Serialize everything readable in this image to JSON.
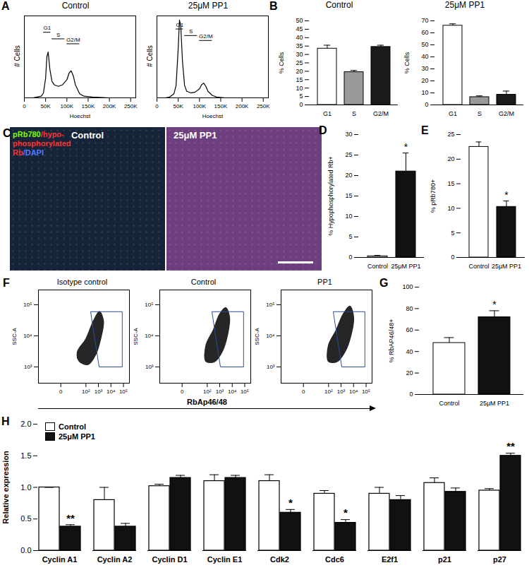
{
  "chart_data": [
    {
      "panel": "A",
      "type": "line",
      "title": "Control",
      "x_label": "Hoechst",
      "y_label": "# Cells",
      "color": "#000000",
      "x": [
        0,
        20000,
        30000,
        40000,
        45000,
        50000,
        53000,
        56000,
        60000,
        65000,
        70000,
        80000,
        90000,
        100000,
        105000,
        110000,
        115000,
        120000,
        130000,
        140000,
        160000,
        200000,
        250000
      ],
      "values": [
        0,
        0,
        0.01,
        0.02,
        0.06,
        0.24,
        0.5,
        0.56,
        0.35,
        0.2,
        0.16,
        0.14,
        0.16,
        0.22,
        0.3,
        0.33,
        0.27,
        0.16,
        0.05,
        0.02,
        0.01,
        0,
        0
      ],
      "xlim": [
        0,
        262000
      ],
      "xticks": [
        0,
        {
          "value": 50000,
          "label": "50K"
        },
        {
          "value": 100000,
          "label": "100K"
        },
        {
          "value": 150000,
          "label": "150K"
        },
        {
          "value": 200000,
          "label": "200K"
        },
        {
          "value": 250000,
          "label": "250K"
        }
      ],
      "ylim": [
        0,
        1
      ],
      "tick_labels": "x",
      "gates": [
        {
          "label": "G1",
          "x": [
            45000,
            62000
          ],
          "y": 0.8
        },
        {
          "label": "S",
          "x": [
            65000,
            95000
          ],
          "y": 0.72
        },
        {
          "label": "G2/M",
          "x": [
            100000,
            130000
          ],
          "y": 0.66
        }
      ]
    },
    {
      "type": "line",
      "title": "25μM PP1",
      "x_label": "Hoechst",
      "y_label": "# Cells",
      "color": "#000000",
      "x": [
        0,
        20000,
        30000,
        40000,
        45000,
        50000,
        53000,
        56000,
        60000,
        65000,
        70000,
        80000,
        90000,
        100000,
        105000,
        110000,
        115000,
        120000,
        130000,
        140000,
        160000,
        200000,
        250000
      ],
      "values": [
        0,
        0,
        0.01,
        0.05,
        0.15,
        0.6,
        0.95,
        0.88,
        0.45,
        0.15,
        0.08,
        0.06,
        0.07,
        0.11,
        0.16,
        0.18,
        0.14,
        0.08,
        0.03,
        0.01,
        0,
        0,
        0
      ],
      "xlim": [
        0,
        262000
      ],
      "xticks": [
        0,
        {
          "value": 50000,
          "label": "50K"
        },
        {
          "value": 100000,
          "label": "100K"
        },
        {
          "value": 150000,
          "label": "150K"
        },
        {
          "value": 200000,
          "label": "200K"
        },
        {
          "value": 250000,
          "label": "250K"
        }
      ],
      "ylim": [
        0,
        1
      ],
      "tick_labels": "x",
      "gates": [
        {
          "label": "G1",
          "x": [
            45000,
            62000
          ],
          "y": 0.84
        },
        {
          "label": "S",
          "x": [
            65000,
            95000
          ],
          "y": 0.76
        },
        {
          "label": "G2/M",
          "x": [
            100000,
            130000
          ],
          "y": 0.7
        }
      ]
    },
    {
      "panel": "B",
      "type": "bar",
      "title": "Control",
      "y_label": "% Cells",
      "categories": [
        "G1",
        "S",
        "G2/M"
      ],
      "values": [
        33.5,
        19.5,
        34.5
      ],
      "errors": [
        2,
        1,
        1
      ],
      "colors": [
        "#ffffff",
        "#999999",
        "#1a1a1a"
      ],
      "ylim": [
        0,
        50
      ],
      "yticks": [
        0,
        5,
        10,
        15,
        20,
        25,
        30,
        35,
        40,
        45,
        50
      ]
    },
    {
      "type": "bar",
      "title": "25μM PP1",
      "y_label": "% Cells",
      "categories": [
        "G1",
        "S",
        "G2/M"
      ],
      "values": [
        66,
        6.5,
        8.5
      ],
      "errors": [
        1.5,
        1,
        3
      ],
      "colors": [
        "#ffffff",
        "#999999",
        "#1a1a1a"
      ],
      "ylim": [
        0,
        70
      ],
      "yticks": [
        0,
        10,
        20,
        30,
        40,
        50,
        60,
        70
      ]
    },
    {
      "panel": "C",
      "type": "image",
      "stain_label": [
        {
          "text": "pRb780",
          "color": "#7CFC00"
        },
        {
          "text": "/hypo-phosphorylated Rb",
          "color": "#ff3030"
        },
        {
          "text": "/DAPI",
          "color": "#5a78ff"
        }
      ],
      "panels": [
        {
          "title": "Control",
          "color": "#16243a"
        },
        {
          "title": "25μM PP1",
          "color": "#6e3f7e"
        }
      ]
    },
    {
      "panel": "D",
      "type": "bar",
      "y_label": "% Hypophosphorylated Rb+",
      "categories": [
        "Control",
        "25μM PP1"
      ],
      "values": [
        0.3,
        21
      ],
      "errors": [
        0.2,
        4.5
      ],
      "colors": [
        "#ffffff",
        "#111111"
      ],
      "ylim": [
        0,
        30
      ],
      "yticks": [
        0,
        5,
        10,
        15,
        20,
        25,
        30
      ],
      "annotations": [
        {
          "category": "25μM PP1",
          "text": "*"
        }
      ]
    },
    {
      "panel": "E",
      "type": "bar",
      "y_label": "% pRb780+",
      "categories": [
        "Control",
        "25μM PP1"
      ],
      "values": [
        22.5,
        10.3
      ],
      "errors": [
        1,
        1.2
      ],
      "colors": [
        "#ffffff",
        "#111111"
      ],
      "ylim": [
        0,
        25
      ],
      "yticks": [
        0,
        5,
        10,
        15,
        20,
        25
      ],
      "annotations": [
        {
          "category": "25μM PP1",
          "text": "*"
        }
      ]
    },
    {
      "panel": "F",
      "type": "scatter",
      "title": "Isotype control",
      "y_label": "SSC-A",
      "log": true,
      "color": "#262626",
      "cloud": [
        [
          30,
          1500
        ],
        [
          150,
          1200
        ],
        [
          600,
          2500
        ],
        [
          1500,
          8000
        ],
        [
          2500,
          30000
        ],
        [
          1200,
          60000
        ],
        [
          400,
          30000
        ],
        [
          100,
          8000
        ],
        [
          20,
          3000
        ]
      ],
      "gate": [
        [
          250,
          60000
        ],
        [
          80000,
          60000
        ],
        [
          80000,
          1000
        ],
        [
          1200,
          1000
        ]
      ],
      "xlim": [
        -60,
        300000
      ],
      "xticks": [
        0,
        {
          "value": 100,
          "label": "10²"
        },
        {
          "value": 1000,
          "label": "10³"
        },
        {
          "value": 10000,
          "label": "10⁴"
        },
        {
          "value": 100000,
          "label": "10⁵"
        }
      ],
      "ylim": [
        300,
        300000
      ],
      "yticks": [
        {
          "value": 1000,
          "label": "10³"
        },
        {
          "value": 10000,
          "label": "10⁴"
        },
        {
          "value": 100000,
          "label": "10⁵"
        }
      ]
    },
    {
      "type": "scatter",
      "title": "Control",
      "y_label": "SSC-A",
      "x_label": "RbAp46/48",
      "log": true,
      "color": "#262626",
      "cloud": [
        [
          80,
          1500
        ],
        [
          400,
          1500
        ],
        [
          1500,
          3000
        ],
        [
          4000,
          10000
        ],
        [
          6000,
          40000
        ],
        [
          3000,
          80000
        ],
        [
          1000,
          50000
        ],
        [
          300,
          15000
        ],
        [
          80,
          5000
        ]
      ],
      "gate": [
        [
          250,
          60000
        ],
        [
          80000,
          60000
        ],
        [
          80000,
          1000
        ],
        [
          1200,
          1000
        ]
      ],
      "xlim": [
        -60,
        300000
      ],
      "xticks": [
        0,
        {
          "value": 100,
          "label": "10²"
        },
        {
          "value": 1000,
          "label": "10³"
        },
        {
          "value": 10000,
          "label": "10⁴"
        },
        {
          "value": 100000,
          "label": "10⁵"
        }
      ],
      "ylim": [
        300,
        300000
      ],
      "yticks": [
        {
          "value": 1000,
          "label": "10³"
        },
        {
          "value": 10000,
          "label": "10⁴"
        },
        {
          "value": 100000,
          "label": "10⁵"
        }
      ]
    },
    {
      "type": "scatter",
      "title": "PP1",
      "y_label": "SSC-A",
      "log": true,
      "color": "#262626",
      "cloud": [
        [
          100,
          1500
        ],
        [
          500,
          1500
        ],
        [
          2000,
          3000
        ],
        [
          6000,
          10000
        ],
        [
          10000,
          40000
        ],
        [
          5000,
          90000
        ],
        [
          1500,
          50000
        ],
        [
          400,
          15000
        ],
        [
          100,
          5000
        ]
      ],
      "gate": [
        [
          250,
          60000
        ],
        [
          80000,
          60000
        ],
        [
          80000,
          1000
        ],
        [
          1200,
          1000
        ]
      ],
      "xlim": [
        -60,
        300000
      ],
      "xticks": [
        0,
        {
          "value": 100,
          "label": "10²"
        },
        {
          "value": 1000,
          "label": "10³"
        },
        {
          "value": 10000,
          "label": "10⁴"
        },
        {
          "value": 100000,
          "label": "10⁵"
        }
      ],
      "ylim": [
        300,
        300000
      ],
      "yticks": [
        {
          "value": 1000,
          "label": "10³"
        },
        {
          "value": 10000,
          "label": "10⁴"
        },
        {
          "value": 100000,
          "label": "10⁵"
        }
      ]
    },
    {
      "panel": "G",
      "type": "bar",
      "y_label": "% RbAP46/48+",
      "categories": [
        "Control",
        "25μM PP1"
      ],
      "values": [
        48,
        72
      ],
      "errors": [
        5,
        6
      ],
      "colors": [
        "#ffffff",
        "#111111"
      ],
      "ylim": [
        0,
        100
      ],
      "yticks": [
        0,
        20,
        40,
        60,
        80,
        100
      ],
      "annotations": [
        {
          "category": "25μM PP1",
          "text": "*"
        }
      ]
    },
    {
      "panel": "H",
      "type": "bar",
      "y_label": "Relative expression",
      "legend": "top-left",
      "categories": [
        "Cyclin A1",
        "Cyclin A2",
        "Cyclin D1",
        "Cyclin E1",
        "Cdk2",
        "Cdc6",
        "E2f1",
        "p21",
        "p27"
      ],
      "series": [
        {
          "name": "Control",
          "color": "#ffffff",
          "values": [
            1.0,
            0.8,
            1.02,
            1.1,
            1.1,
            0.9,
            0.9,
            1.07,
            0.95
          ],
          "errors": [
            0,
            0.2,
            0.03,
            0.1,
            0.1,
            0.05,
            0.1,
            0.08,
            0.03
          ]
        },
        {
          "name": "25μM PP1",
          "color": "#111111",
          "values": [
            0.38,
            0.38,
            1.15,
            1.15,
            0.6,
            0.44,
            0.8,
            0.93,
            1.5
          ],
          "errors": [
            0.03,
            0.05,
            0.04,
            0.04,
            0.05,
            0.05,
            0.07,
            0.06,
            0.04
          ]
        }
      ],
      "ylim": [
        0,
        2
      ],
      "yticks": [
        {
          "value": 0,
          "label": "0.0"
        },
        {
          "value": 0.5,
          "label": "0.5"
        },
        {
          "value": 1,
          "label": "1.0"
        },
        {
          "value": 1.5,
          "label": "1.5"
        },
        {
          "value": 2,
          "label": "2.0"
        }
      ],
      "annotations": [
        {
          "category": "Cyclin A1",
          "series": "25μM PP1",
          "text": "**"
        },
        {
          "category": "Cdk2",
          "series": "25μM PP1",
          "text": "*"
        },
        {
          "category": "Cdc6",
          "series": "25μM PP1",
          "text": "*"
        },
        {
          "category": "p27",
          "series": "25μM PP1",
          "text": "**"
        }
      ]
    }
  ]
}
